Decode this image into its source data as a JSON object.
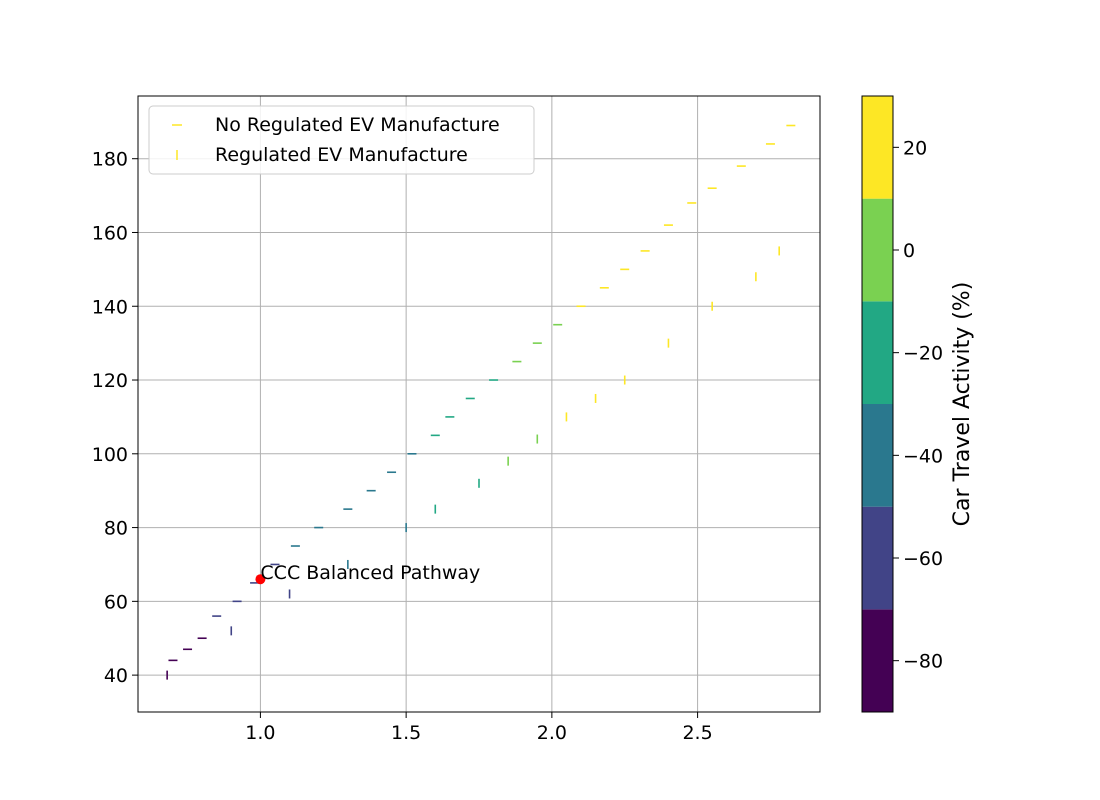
{
  "chart_data": {
    "type": "scatter",
    "title": "",
    "xlabel": "",
    "ylabel": "",
    "xlim": [
      0.58,
      2.92
    ],
    "ylim": [
      30,
      197
    ],
    "x_ticks": [
      "1.0",
      "1.5",
      "2.0",
      "2.5"
    ],
    "y_ticks": [
      "40",
      "60",
      "80",
      "100",
      "120",
      "140",
      "160",
      "180"
    ],
    "grid": true,
    "legend": {
      "placement": "top-left",
      "entries": [
        {
          "label": "No Regulated EV Manufacture",
          "marker": "horizontal-dash"
        },
        {
          "label": "Regulated EV Manufacture",
          "marker": "vertical-dash"
        }
      ]
    },
    "colorbar": {
      "label": "Car Travel Activity (%)",
      "range": [
        -90,
        30
      ],
      "ticks": [
        "−80",
        "−60",
        "−40",
        "−20",
        "0",
        "20"
      ],
      "bins": [
        {
          "from": -90,
          "to": -70,
          "color": "#440154"
        },
        {
          "from": -70,
          "to": -50,
          "color": "#414487"
        },
        {
          "from": -50,
          "to": -30,
          "color": "#2a788e"
        },
        {
          "from": -30,
          "to": -10,
          "color": "#22a884"
        },
        {
          "from": -10,
          "to": 10,
          "color": "#7ad151"
        },
        {
          "from": 10,
          "to": 30,
          "color": "#fde725"
        }
      ]
    },
    "annotation": {
      "text": "CCC Balanced Pathway",
      "x": 1.0,
      "y": 66,
      "marker_color": "#ff0000"
    },
    "series": [
      {
        "name": "No Regulated EV Manufacture",
        "marker": "horizontal-dash",
        "points": [
          [
            0.7,
            44,
            -85
          ],
          [
            0.75,
            47,
            -85
          ],
          [
            0.8,
            50,
            -80
          ],
          [
            0.85,
            56,
            -65
          ],
          [
            0.92,
            60,
            -62
          ],
          [
            0.98,
            65,
            -58
          ],
          [
            1.05,
            70,
            -55
          ],
          [
            1.12,
            75,
            -50
          ],
          [
            1.2,
            80,
            -45
          ],
          [
            1.3,
            85,
            -42
          ],
          [
            1.38,
            90,
            -40
          ],
          [
            1.45,
            95,
            -38
          ],
          [
            1.52,
            100,
            -35
          ],
          [
            1.6,
            105,
            -30
          ],
          [
            1.65,
            110,
            -25
          ],
          [
            1.72,
            115,
            -20
          ],
          [
            1.8,
            120,
            -12
          ],
          [
            1.88,
            125,
            -5
          ],
          [
            1.95,
            130,
            0
          ],
          [
            2.02,
            135,
            8
          ],
          [
            2.1,
            140,
            12
          ],
          [
            2.18,
            145,
            18
          ],
          [
            2.25,
            150,
            22
          ],
          [
            2.32,
            155,
            25
          ],
          [
            2.4,
            162,
            28
          ],
          [
            2.48,
            168,
            28
          ],
          [
            2.55,
            172,
            28
          ],
          [
            2.65,
            178,
            28
          ],
          [
            2.75,
            184,
            28
          ],
          [
            2.82,
            189,
            28
          ]
        ]
      },
      {
        "name": "Regulated EV Manufacture",
        "marker": "vertical-dash",
        "points": [
          [
            0.68,
            40,
            -85
          ],
          [
            0.9,
            52,
            -62
          ],
          [
            1.1,
            62,
            -55
          ],
          [
            1.3,
            70,
            -45
          ],
          [
            1.5,
            80,
            -35
          ],
          [
            1.6,
            85,
            -28
          ],
          [
            1.75,
            92,
            -15
          ],
          [
            1.85,
            98,
            -5
          ],
          [
            1.95,
            104,
            5
          ],
          [
            2.05,
            110,
            15
          ],
          [
            2.15,
            115,
            20
          ],
          [
            2.25,
            120,
            25
          ],
          [
            2.4,
            130,
            25
          ],
          [
            2.55,
            140,
            25
          ],
          [
            2.7,
            148,
            25
          ],
          [
            2.78,
            155,
            25
          ]
        ]
      }
    ]
  }
}
